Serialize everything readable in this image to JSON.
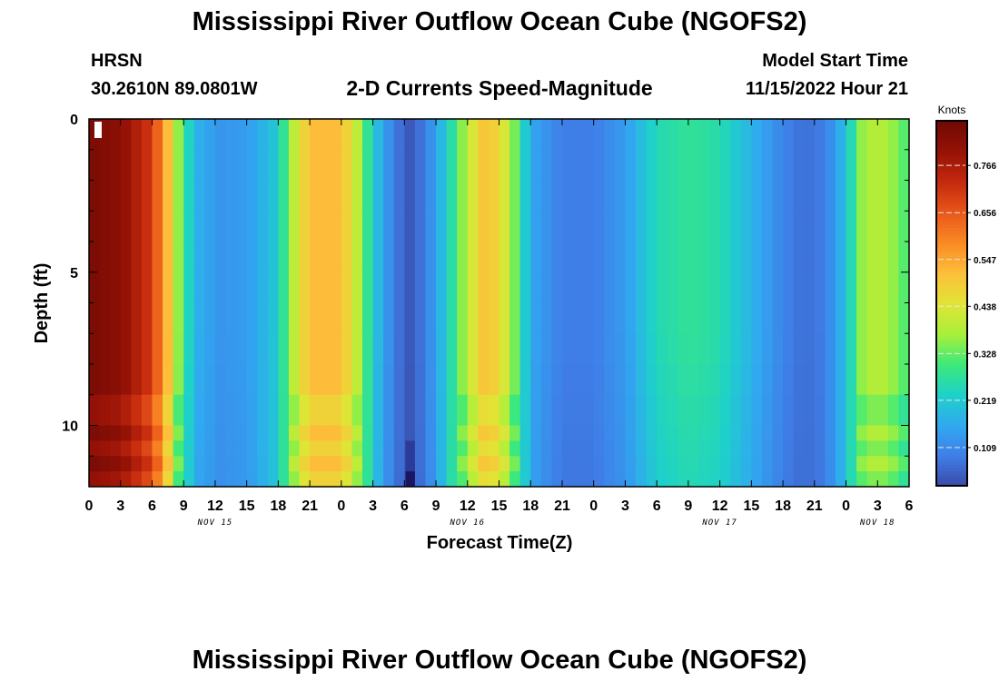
{
  "header": {
    "title": "Mississippi River Outflow Ocean Cube (NGOFS2)",
    "station": "HRSN",
    "coords": "30.2610N  89.0801W",
    "product": "2-D Currents Speed-Magnitude",
    "start_label": "Model Start Time",
    "start_value": "11/15/2022 Hour 21"
  },
  "footer": {
    "title": "Mississippi River Outflow Ocean Cube (NGOFS2)"
  },
  "chart_data": {
    "type": "heatmap",
    "xlabel": "Forecast Time(Z)",
    "ylabel": "Depth (ft)",
    "x_tick_labels": [
      "0",
      "3",
      "6",
      "9",
      "12",
      "15",
      "18",
      "21",
      "0",
      "3",
      "6",
      "9",
      "12",
      "15",
      "18",
      "21",
      "0",
      "3",
      "6",
      "9",
      "12",
      "15",
      "18",
      "21",
      "0",
      "3",
      "6"
    ],
    "date_labels": [
      {
        "label": "NOV 15",
        "at_tick": 4
      },
      {
        "label": "NOV 16",
        "at_tick": 12
      },
      {
        "label": "NOV 17",
        "at_tick": 20
      },
      {
        "label": "NOV 18",
        "at_tick": 25
      }
    ],
    "x_range_hours": [
      0,
      78
    ],
    "y_ticks": [
      0,
      5,
      10
    ],
    "ylim": [
      0,
      12
    ],
    "y_inverted": true,
    "colorbar": {
      "unit": "Knots",
      "ticks": [
        0.109,
        0.219,
        0.328,
        0.438,
        0.547,
        0.656,
        0.766
      ],
      "range": [
        0.02,
        0.87
      ],
      "colormap": [
        "#3a4aa8",
        "#3f7fe8",
        "#30a9f0",
        "#1ed1c9",
        "#3ce97a",
        "#a8f03a",
        "#e2e436",
        "#fdbf3a",
        "#f98a24",
        "#e9561a",
        "#c42a0e",
        "#961206",
        "#6e0a04"
      ]
    },
    "speed_profile_hours": [
      [
        0,
        0.85
      ],
      [
        3,
        0.82
      ],
      [
        6,
        0.7
      ],
      [
        7.5,
        0.52
      ],
      [
        8.5,
        0.36
      ],
      [
        10,
        0.18
      ],
      [
        12.5,
        0.13
      ],
      [
        15,
        0.14
      ],
      [
        18,
        0.22
      ],
      [
        19.5,
        0.4
      ],
      [
        21,
        0.52
      ],
      [
        24,
        0.52
      ],
      [
        25.5,
        0.4
      ],
      [
        27,
        0.22
      ],
      [
        29,
        0.09
      ],
      [
        30.5,
        0.04
      ],
      [
        32,
        0.09
      ],
      [
        34,
        0.22
      ],
      [
        36,
        0.4
      ],
      [
        37.5,
        0.5
      ],
      [
        39,
        0.48
      ],
      [
        40.5,
        0.34
      ],
      [
        42,
        0.16
      ],
      [
        45,
        0.09
      ],
      [
        48,
        0.09
      ],
      [
        51,
        0.14
      ],
      [
        54,
        0.25
      ],
      [
        57,
        0.28
      ],
      [
        60,
        0.26
      ],
      [
        63,
        0.18
      ],
      [
        66,
        0.1
      ],
      [
        68,
        0.07
      ],
      [
        70,
        0.09
      ],
      [
        72,
        0.2
      ],
      [
        73.5,
        0.36
      ],
      [
        75,
        0.4
      ],
      [
        76.5,
        0.36
      ],
      [
        78,
        0.3
      ]
    ],
    "surface_peak_hours": [
      [
        0,
        1.0
      ],
      [
        7,
        1.0
      ],
      [
        10,
        0.9
      ],
      [
        20,
        1.0
      ],
      [
        26,
        1.0
      ],
      [
        30,
        0.9
      ],
      [
        35,
        1.0
      ],
      [
        41,
        1.0
      ],
      [
        44,
        0.9
      ],
      [
        55,
        0.9
      ],
      [
        66,
        0.9
      ],
      [
        72,
        1.0
      ],
      [
        78,
        1.0
      ]
    ],
    "annotations": [
      {
        "type": "dark_cells",
        "hour": 6.3,
        "depth_ft": [
          10.5,
          12
        ],
        "value": 0.04
      }
    ]
  }
}
